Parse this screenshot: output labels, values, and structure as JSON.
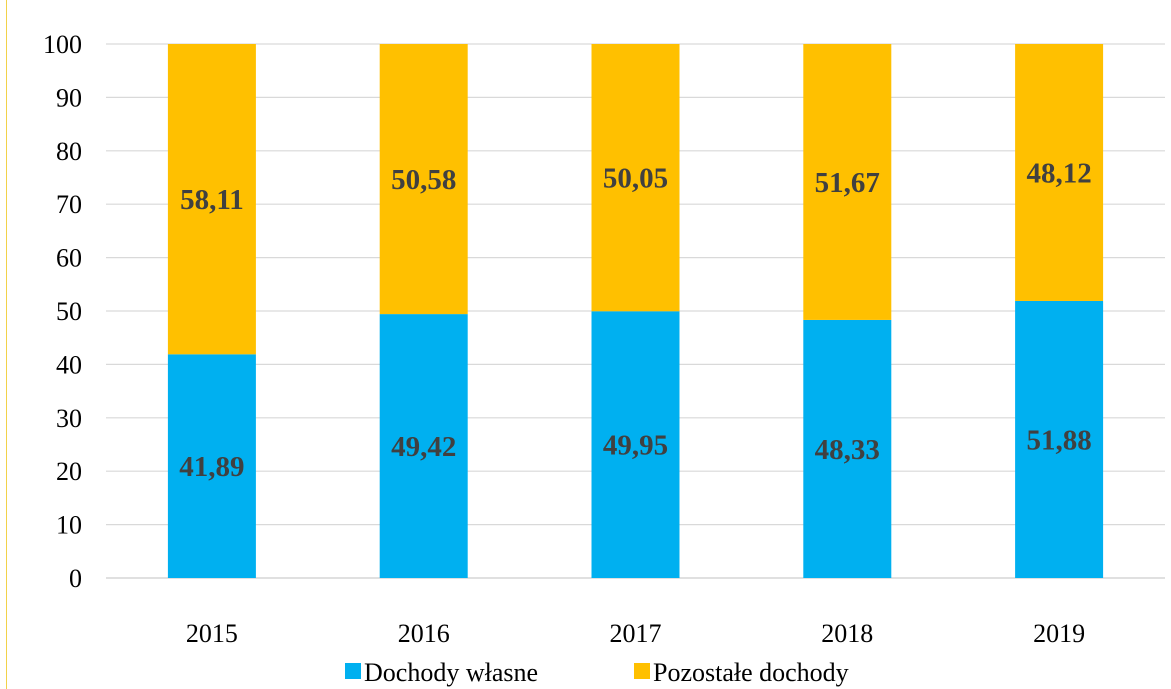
{
  "chart_data": {
    "type": "bar",
    "stacked": true,
    "categories": [
      "2015",
      "2016",
      "2017",
      "2018",
      "2019"
    ],
    "series": [
      {
        "name": "Dochody własne",
        "color": "#00b0f0",
        "values": [
          41.89,
          49.42,
          49.95,
          48.33,
          51.88
        ],
        "labels": [
          "41,89",
          "49,42",
          "49,95",
          "48,33",
          "51,88"
        ]
      },
      {
        "name": "Pozostałe dochody",
        "color": "#ffc000",
        "values": [
          58.11,
          50.58,
          50.05,
          51.67,
          48.12
        ],
        "labels": [
          "58,11",
          "50,58",
          "50,05",
          "51,67",
          "48,12"
        ]
      }
    ],
    "ylim": [
      0,
      100
    ],
    "yticks": [
      0,
      10,
      20,
      30,
      40,
      50,
      60,
      70,
      80,
      90,
      100
    ],
    "grid": true,
    "legend_position": "bottom"
  }
}
